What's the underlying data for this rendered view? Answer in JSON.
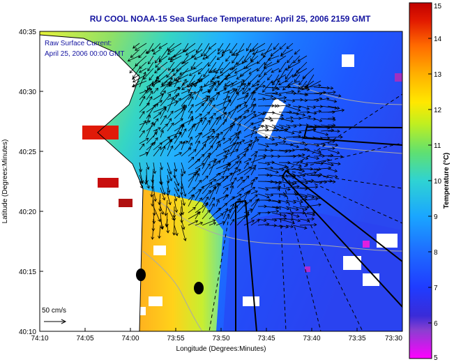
{
  "title": "RU COOL  NOAA-15  Sea Surface Temperature:  April 25, 2006 2159 GMT",
  "annotation": {
    "line1": "Raw Surface Current:",
    "line2": "April 25, 2006 00:00 GMT"
  },
  "scale_label": "50 cm/s",
  "axes": {
    "xlabel": "Longitude (Degrees:Minutes)",
    "ylabel": "Latitude (Degrees:Minutes)",
    "xticks": [
      "74:10",
      "74:05",
      "74:00",
      "73:55",
      "73:50",
      "73:45",
      "73:40",
      "73:35",
      "73:30"
    ],
    "yticks": [
      "40:10",
      "40:15",
      "40:20",
      "40:25",
      "40:30",
      "40:35"
    ]
  },
  "colorbar": {
    "label": "Temperature (°C)",
    "ticks": [
      "5",
      "6",
      "7",
      "8",
      "9",
      "10",
      "11",
      "12",
      "13",
      "14",
      "15"
    ],
    "min": 5,
    "max": 15
  },
  "colors": {
    "land": "#ffffff",
    "title": "#1414a0",
    "arrow": "#000000"
  }
}
